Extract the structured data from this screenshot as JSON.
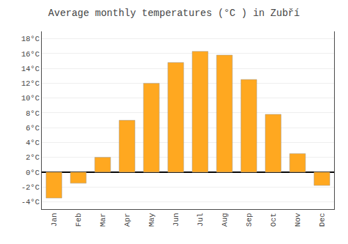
{
  "chart_data": {
    "type": "bar",
    "title": "Average monthly temperatures (°C ) in Zubří",
    "categories": [
      "Jan",
      "Feb",
      "Mar",
      "Apr",
      "May",
      "Jun",
      "Jul",
      "Aug",
      "Sep",
      "Oct",
      "Nov",
      "Dec"
    ],
    "values": [
      -3.5,
      -1.5,
      2.0,
      7.0,
      12.0,
      14.8,
      16.3,
      15.8,
      12.5,
      7.8,
      2.5,
      -1.8
    ],
    "color": "#FFA820",
    "ylim": [
      -5,
      19
    ],
    "yticks": [
      {
        "value": -4,
        "label": "-4°C"
      },
      {
        "value": -2,
        "label": "-2°C"
      },
      {
        "value": 0,
        "label": "0°C"
      },
      {
        "value": 2,
        "label": "2°C"
      },
      {
        "value": 4,
        "label": "4°C"
      },
      {
        "value": 6,
        "label": "6°C"
      },
      {
        "value": 8,
        "label": "8°C"
      },
      {
        "value": 10,
        "label": "10°C"
      },
      {
        "value": 12,
        "label": "12°C"
      },
      {
        "value": 14,
        "label": "14°C"
      },
      {
        "value": 16,
        "label": "16°C"
      },
      {
        "value": 18,
        "label": "18°C"
      }
    ],
    "grid": true
  }
}
